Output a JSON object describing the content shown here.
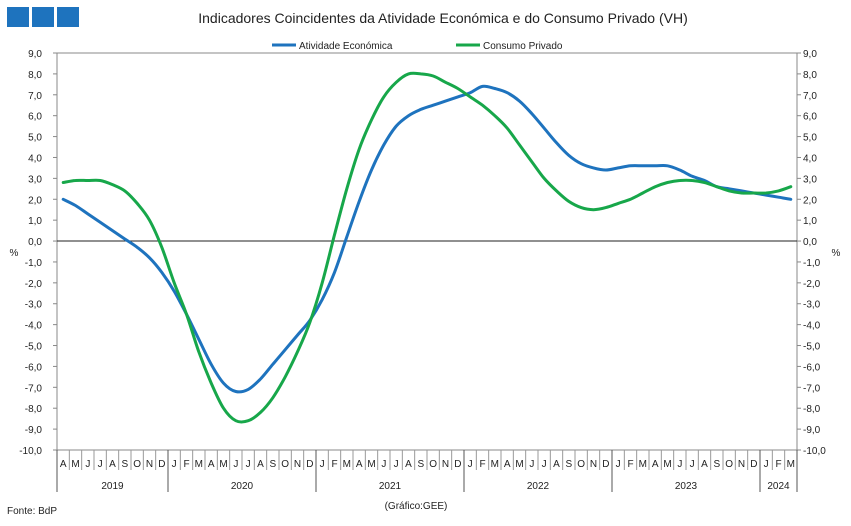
{
  "chart_data": {
    "type": "line",
    "title": "Indicadores Coincidentes da Atividade Económica e do Consumo Privado (VH)",
    "ylabel_left": "%",
    "ylabel_right": "%",
    "ylim": [
      -10,
      9
    ],
    "yticks": [
      "9,0",
      "8,0",
      "7,0",
      "6,0",
      "5,0",
      "4,0",
      "3,0",
      "2,0",
      "1,0",
      "0,0",
      "-1,0",
      "-2,0",
      "-3,0",
      "-4,0",
      "-5,0",
      "-6,0",
      "-7,0",
      "-8,0",
      "-9,0",
      "-10,0"
    ],
    "months": [
      "A",
      "M",
      "J",
      "J",
      "A",
      "S",
      "O",
      "N",
      "D",
      "J",
      "F",
      "M",
      "A",
      "M",
      "J",
      "J",
      "A",
      "S",
      "O",
      "N",
      "D",
      "J",
      "F",
      "M",
      "A",
      "M",
      "J",
      "J",
      "A",
      "S",
      "O",
      "N",
      "D",
      "J",
      "F",
      "M",
      "A",
      "M",
      "J",
      "J",
      "A",
      "S",
      "O",
      "N",
      "D",
      "J",
      "F",
      "M",
      "A",
      "M",
      "J",
      "J",
      "A",
      "S",
      "O",
      "N",
      "D",
      "J",
      "F",
      "M"
    ],
    "years": [
      {
        "label": "2019",
        "start": 0,
        "end": 9
      },
      {
        "label": "2020",
        "start": 9,
        "end": 21
      },
      {
        "label": "2021",
        "start": 21,
        "end": 33
      },
      {
        "label": "2022",
        "start": 33,
        "end": 45
      },
      {
        "label": "2023",
        "start": 45,
        "end": 57
      },
      {
        "label": "2024",
        "start": 57,
        "end": 60
      }
    ],
    "series": [
      {
        "name": "Atividade Económica",
        "color": "#1e73be",
        "values": [
          2.0,
          1.7,
          1.3,
          0.9,
          0.5,
          0.1,
          -0.3,
          -0.8,
          -1.5,
          -2.4,
          -3.5,
          -4.7,
          -5.9,
          -6.8,
          -7.2,
          -7.1,
          -6.6,
          -5.9,
          -5.2,
          -4.5,
          -3.8,
          -2.8,
          -1.5,
          0.2,
          1.9,
          3.4,
          4.6,
          5.5,
          6.0,
          6.3,
          6.5,
          6.7,
          6.9,
          7.1,
          7.4,
          7.3,
          7.1,
          6.7,
          6.1,
          5.4,
          4.7,
          4.1,
          3.7,
          3.5,
          3.4,
          3.5,
          3.6,
          3.6,
          3.6,
          3.6,
          3.4,
          3.1,
          2.9,
          2.6,
          2.5,
          2.4,
          2.3,
          2.2,
          2.1,
          2.0
        ]
      },
      {
        "name": "Consumo Privado",
        "color": "#17a74a",
        "values": [
          2.8,
          2.9,
          2.9,
          2.9,
          2.7,
          2.4,
          1.8,
          1.0,
          -0.3,
          -2.0,
          -3.5,
          -5.3,
          -6.8,
          -8.0,
          -8.6,
          -8.6,
          -8.2,
          -7.5,
          -6.5,
          -5.3,
          -3.9,
          -2.0,
          0.3,
          2.5,
          4.4,
          5.8,
          6.9,
          7.6,
          8.0,
          8.0,
          7.9,
          7.6,
          7.3,
          6.9,
          6.5,
          6.0,
          5.4,
          4.6,
          3.8,
          3.0,
          2.4,
          1.9,
          1.6,
          1.5,
          1.6,
          1.8,
          2.0,
          2.3,
          2.6,
          2.8,
          2.9,
          2.9,
          2.8,
          2.6,
          2.4,
          2.3,
          2.3,
          2.3,
          2.4,
          2.6
        ]
      }
    ]
  },
  "source_text": "Fonte: BdP",
  "credit_text": "(Gráfico:GEE)"
}
